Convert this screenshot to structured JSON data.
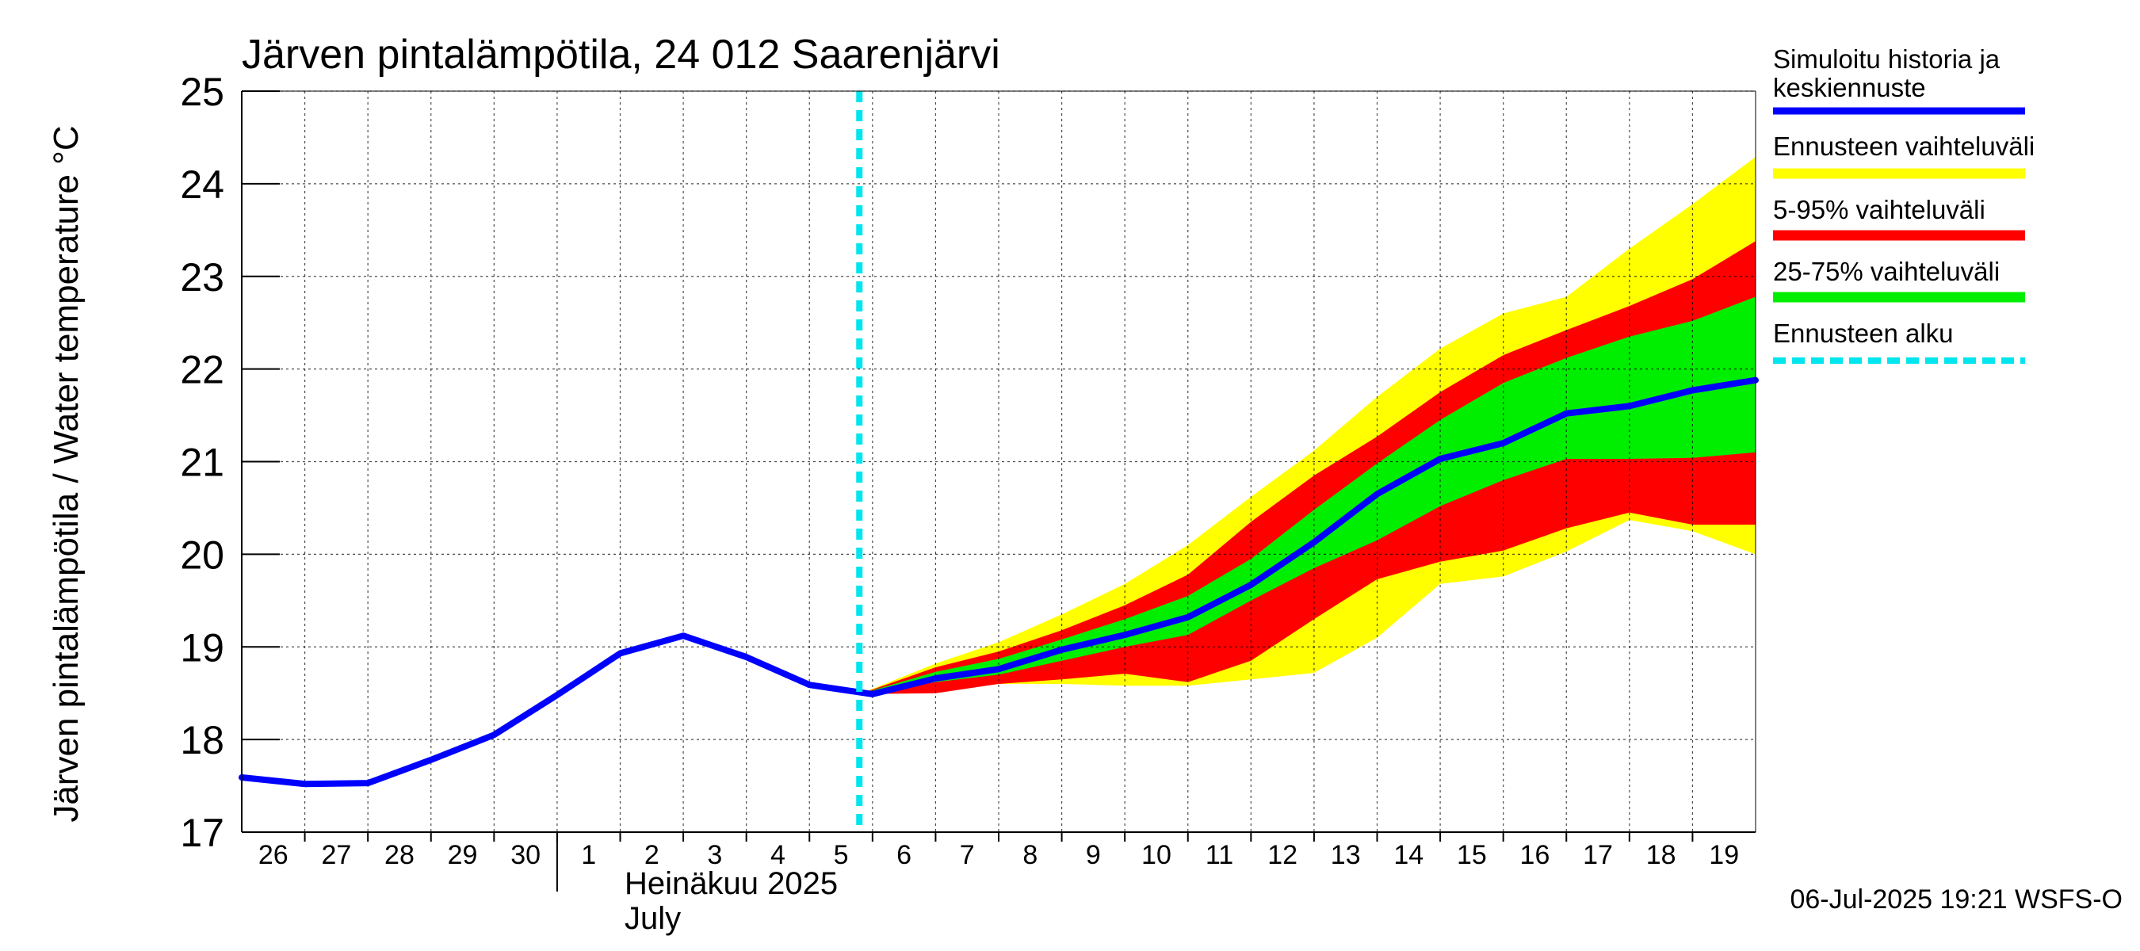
{
  "chart_data": {
    "type": "area",
    "title": "Järven pintalämpötila, 24 012 Saarenjärvi",
    "ylabel": "Järven pintalämpötila / Water temperature °C",
    "ylim": [
      17,
      25
    ],
    "yticks": [
      17,
      18,
      19,
      20,
      21,
      22,
      23,
      24,
      25
    ],
    "x_start": "2025-06-26",
    "x_end": "2025-07-20",
    "xtick_labels": [
      "26",
      "27",
      "28",
      "29",
      "30",
      "1",
      "2",
      "3",
      "4",
      "5",
      "6",
      "7",
      "8",
      "9",
      "10",
      "11",
      "12",
      "13",
      "14",
      "15",
      "16",
      "17",
      "18",
      "19"
    ],
    "month_label_fi": "Heinäkuu  2025",
    "month_label_en": "July",
    "month_start": "2025-07-01",
    "forecast_start": "2025-07-05T19:00",
    "grid": true,
    "legend_position": "right",
    "legend": [
      {
        "key": "history",
        "label": "Simuloitu historia ja keskiennuste",
        "color": "#0000ff"
      },
      {
        "key": "range",
        "label": "Ennusteen vaihteluväli",
        "color": "#ffff00"
      },
      {
        "key": "p5_95",
        "label": "5-95% vaihteluväli",
        "color": "#ff0000"
      },
      {
        "key": "p25_75",
        "label": "25-75% vaihteluväli",
        "color": "#00ee00"
      },
      {
        "key": "start",
        "label": "Ennusteen alku",
        "color": "#00e5ee"
      }
    ],
    "series": [
      {
        "name": "Simuloitu historia ja keskiennuste",
        "x": [
          "2025-06-26",
          "2025-06-27",
          "2025-06-28",
          "2025-06-29",
          "2025-06-30",
          "2025-07-01",
          "2025-07-02",
          "2025-07-03",
          "2025-07-04",
          "2025-07-05",
          "2025-07-06",
          "2025-07-07",
          "2025-07-08",
          "2025-07-09",
          "2025-07-10",
          "2025-07-11",
          "2025-07-12",
          "2025-07-13",
          "2025-07-14",
          "2025-07-15",
          "2025-07-16",
          "2025-07-17",
          "2025-07-18",
          "2025-07-19",
          "2025-07-20"
        ],
        "values": [
          17.59,
          17.52,
          17.53,
          17.78,
          18.05,
          18.48,
          18.93,
          19.12,
          18.89,
          18.59,
          18.49,
          18.66,
          18.76,
          18.97,
          19.13,
          19.32,
          19.67,
          20.13,
          20.65,
          21.03,
          21.2,
          21.52,
          21.6,
          21.77,
          21.88
        ]
      },
      {
        "name": "Ennusteen vaihteluväli",
        "x": [
          "2025-07-05T19:00",
          "2025-07-07",
          "2025-07-08",
          "2025-07-09",
          "2025-07-10",
          "2025-07-11",
          "2025-07-12",
          "2025-07-13",
          "2025-07-14",
          "2025-07-15",
          "2025-07-16",
          "2025-07-17",
          "2025-07-18",
          "2025-07-19",
          "2025-07-20"
        ],
        "low": [
          18.49,
          18.55,
          18.6,
          18.6,
          18.58,
          18.58,
          18.65,
          18.72,
          19.1,
          19.68,
          19.76,
          20.03,
          20.37,
          20.25,
          20.0
        ],
        "high": [
          18.49,
          18.82,
          19.05,
          19.35,
          19.68,
          20.1,
          20.62,
          21.12,
          21.7,
          22.22,
          22.6,
          22.78,
          23.3,
          23.78,
          24.29
        ]
      },
      {
        "name": "5-95% vaihteluväli",
        "x": [
          "2025-07-05T19:00",
          "2025-07-07",
          "2025-07-08",
          "2025-07-09",
          "2025-07-10",
          "2025-07-11",
          "2025-07-12",
          "2025-07-13",
          "2025-07-14",
          "2025-07-15",
          "2025-07-16",
          "2025-07-17",
          "2025-07-18",
          "2025-07-19",
          "2025-07-20"
        ],
        "low": [
          18.49,
          18.5,
          18.6,
          18.65,
          18.71,
          18.62,
          18.85,
          19.3,
          19.73,
          19.92,
          20.04,
          20.28,
          20.45,
          20.32,
          20.32
        ],
        "high": [
          18.49,
          18.78,
          18.95,
          19.18,
          19.45,
          19.78,
          20.35,
          20.85,
          21.27,
          21.75,
          22.15,
          22.42,
          22.68,
          22.97,
          23.38
        ]
      },
      {
        "name": "25-75% vaihteluväli",
        "x": [
          "2025-07-05T19:00",
          "2025-07-07",
          "2025-07-08",
          "2025-07-09",
          "2025-07-10",
          "2025-07-11",
          "2025-07-12",
          "2025-07-13",
          "2025-07-14",
          "2025-07-15",
          "2025-07-16",
          "2025-07-17",
          "2025-07-18",
          "2025-07-19",
          "2025-07-20"
        ],
        "low": [
          18.49,
          18.62,
          18.7,
          18.85,
          19.0,
          19.13,
          19.5,
          19.85,
          20.15,
          20.52,
          20.8,
          21.03,
          21.03,
          21.04,
          21.1
        ],
        "high": [
          18.49,
          18.73,
          18.87,
          19.08,
          19.3,
          19.55,
          19.95,
          20.48,
          20.98,
          21.45,
          21.85,
          22.12,
          22.35,
          22.52,
          22.78
        ]
      }
    ],
    "timestamp_label": "06-Jul-2025 19:21 WSFS-O"
  }
}
